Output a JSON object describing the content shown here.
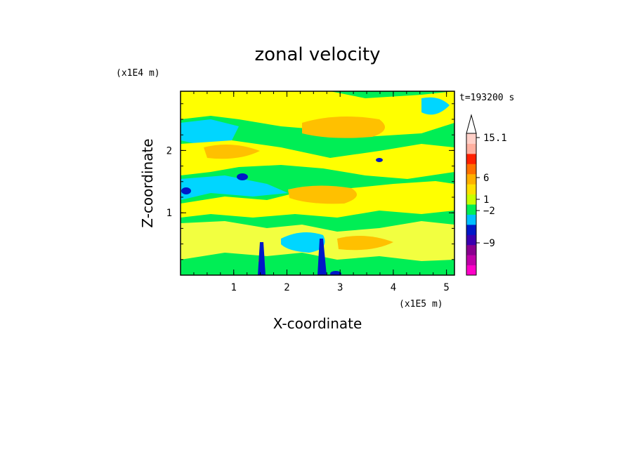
{
  "chart_data": {
    "type": "heatmap",
    "title": "zonal velocity",
    "xlabel": "X-coordinate",
    "ylabel": "Z-coordinate",
    "x_unit": "(x1E5 m)",
    "y_unit": "(x1E4 m)",
    "time_label": "t=193200 s",
    "xlim": [
      0,
      5.15
    ],
    "ylim": [
      0,
      2.95
    ],
    "x_ticks": [
      1,
      2,
      3,
      4,
      5
    ],
    "y_ticks": [
      1,
      2
    ],
    "colorbar": {
      "labels": [
        "15.1",
        "6",
        "1",
        "−2",
        "−9"
      ],
      "colors": [
        "#ff00c8",
        "#c000a8",
        "#8a008f",
        "#3a00b0",
        "#0018c8",
        "#00bfff",
        "#00ee55",
        "#c8ff00",
        "#ffe000",
        "#ffb000",
        "#ff7000",
        "#ff2000",
        "#ffb0a0",
        "#ffd0c8"
      ]
    },
    "palette": {
      "green": "#00ee55",
      "cyan": "#00d6ff",
      "yellow": "#ffff00",
      "light_yellow": "#f2ff40",
      "orange": "#ffc000",
      "dark_orange": "#ff9000",
      "blue": "#0018c8",
      "red": "#ff2000"
    }
  }
}
